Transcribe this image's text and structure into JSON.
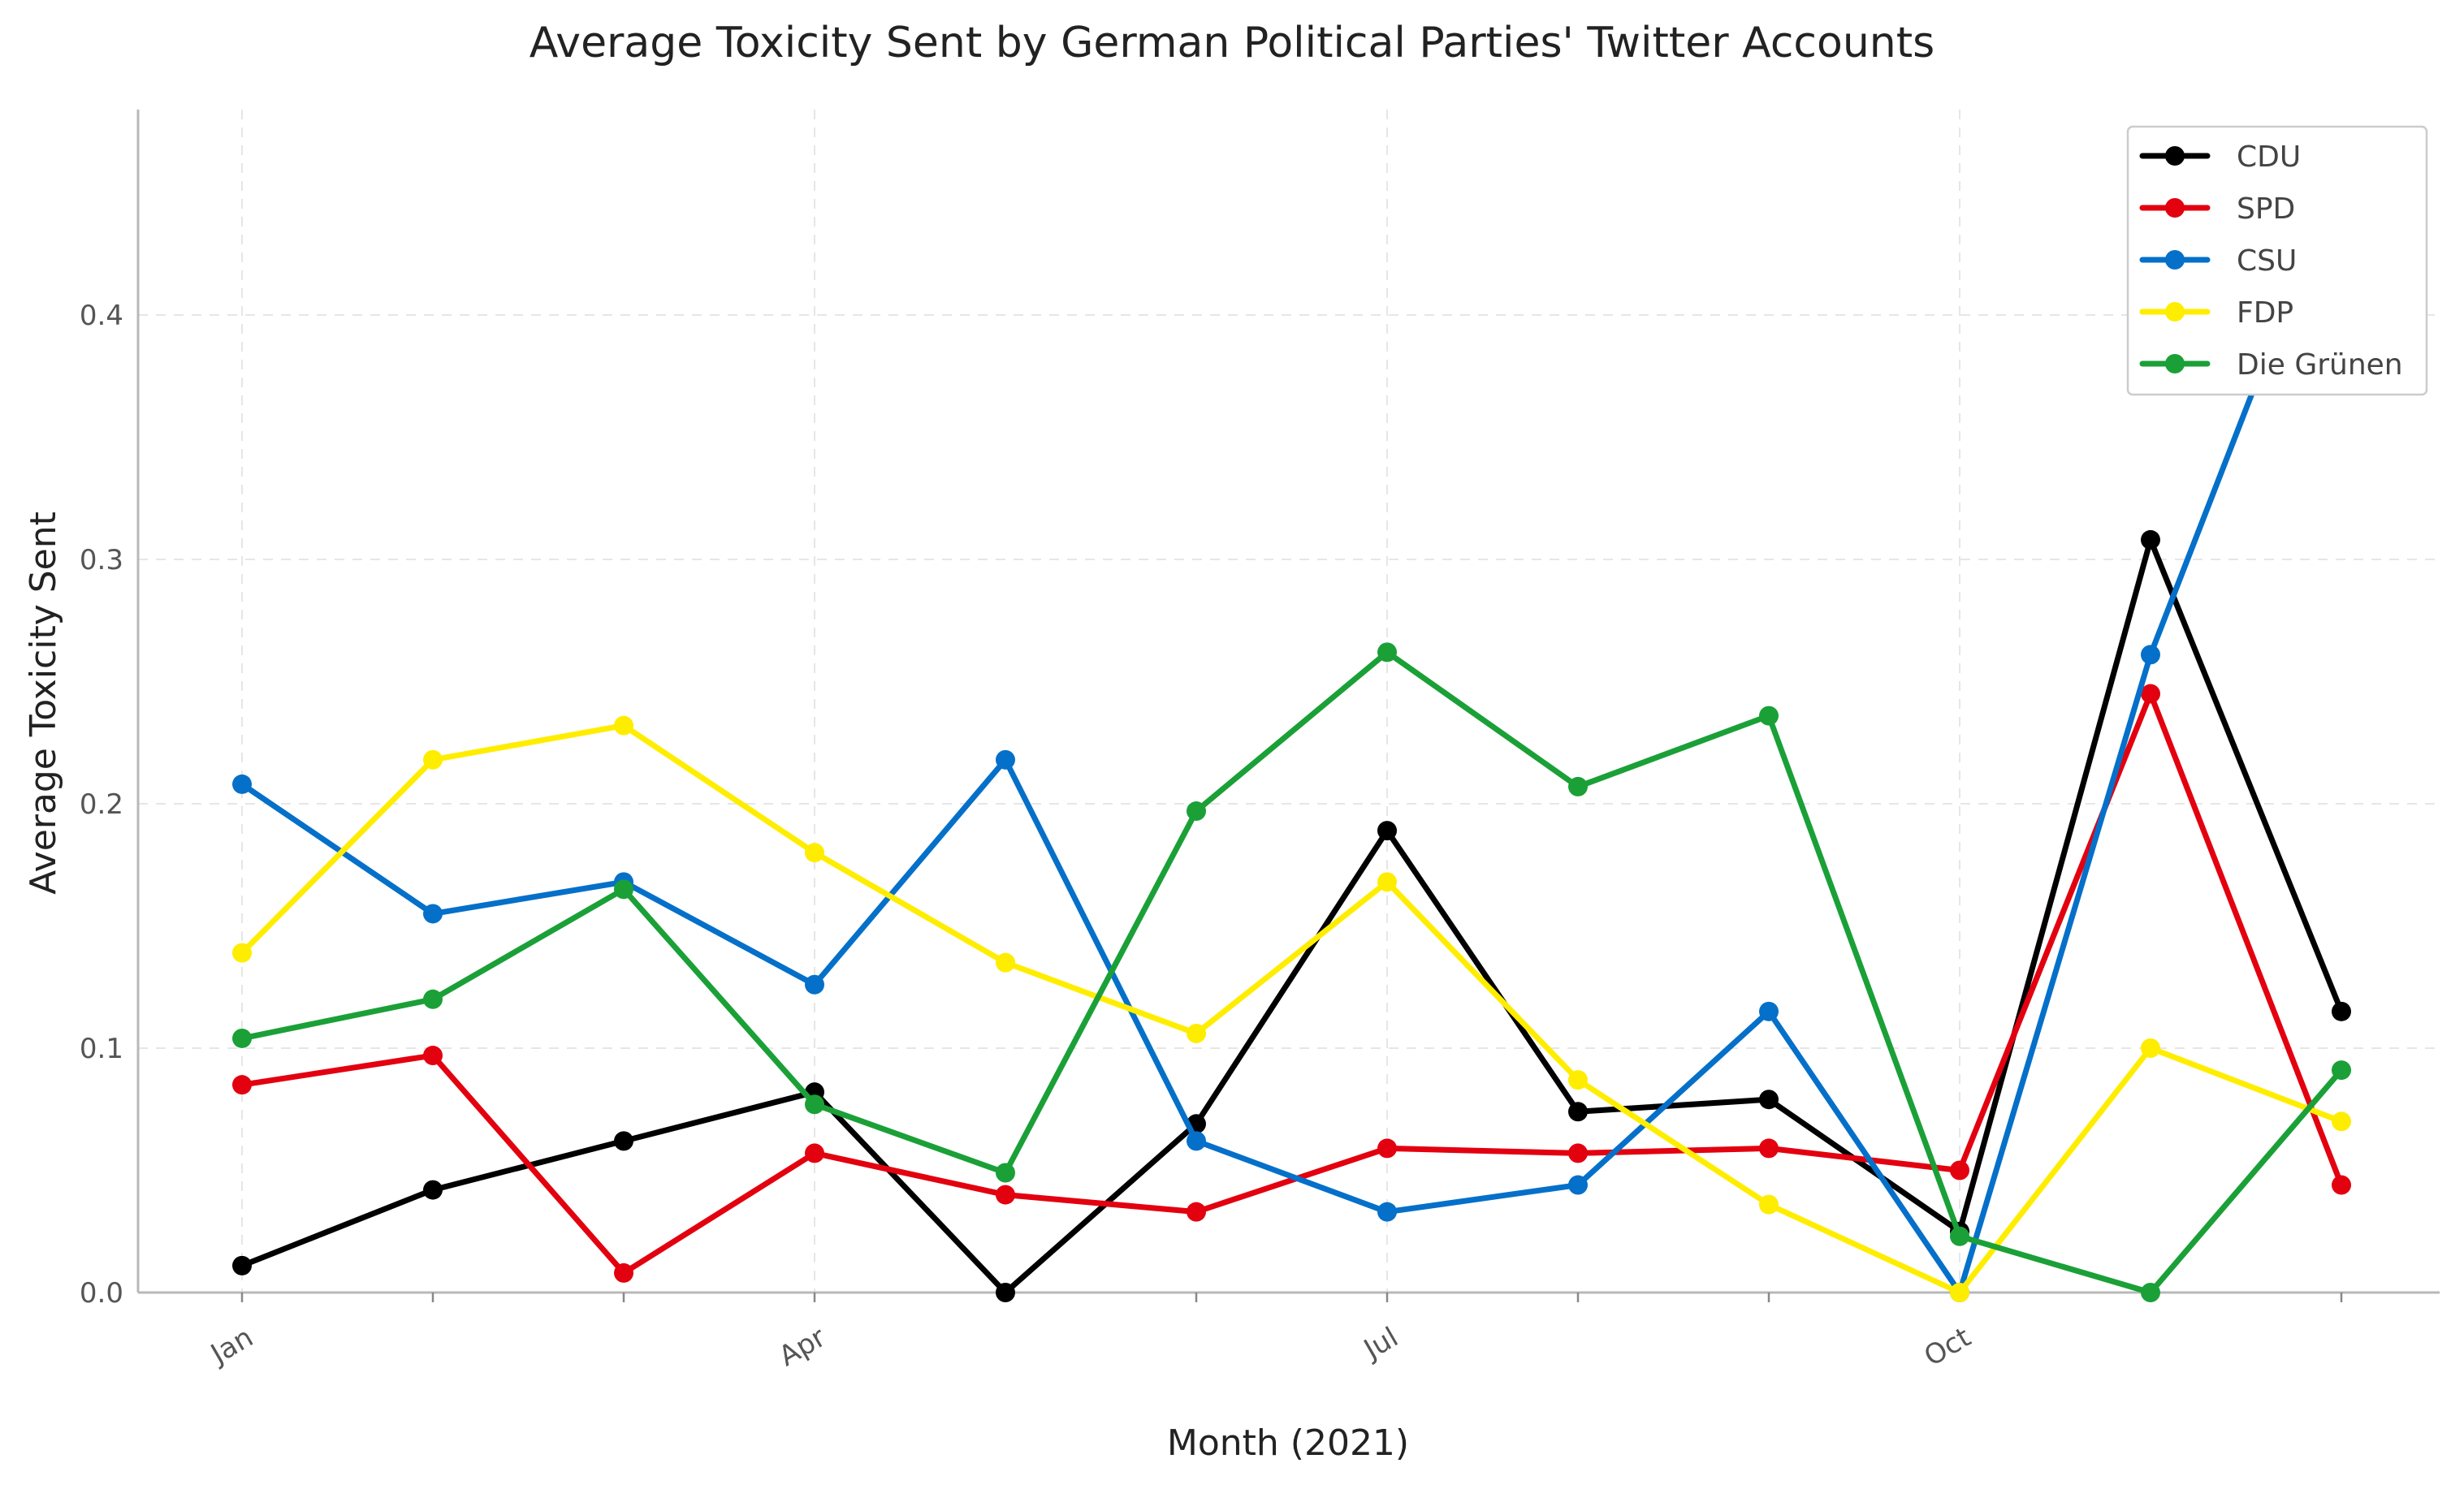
{
  "chart_data": {
    "type": "line",
    "title": "Average Toxicity Sent by German Political Parties' Twitter Accounts",
    "xlabel": "Month (2021)",
    "ylabel": "Average Toxicity Sent",
    "x": [
      "2021-01",
      "2021-02",
      "2021-03",
      "2021-04",
      "2021-05",
      "2021-06",
      "2021-07",
      "2021-08",
      "2021-09",
      "2021-10",
      "2021-11",
      "2021-12"
    ],
    "x_tick_labels": [
      {
        "month": "2021-01",
        "label": "Jan"
      },
      {
        "month": "2021-04",
        "label": "Apr"
      },
      {
        "month": "2021-07",
        "label": "Jul"
      },
      {
        "month": "2021-10",
        "label": "Oct"
      }
    ],
    "y_ticks": [
      "0.0",
      "0.1",
      "0.2",
      "0.3",
      "0.4"
    ],
    "ylim": [
      0,
      0.465
    ],
    "grid": true,
    "legend_position": "top-right",
    "series": [
      {
        "name": "CDU",
        "color": "#000000",
        "values": [
          0.011,
          0.042,
          0.062,
          0.082,
          0.0,
          0.069,
          0.189,
          0.074,
          0.079,
          0.025,
          0.308,
          0.115
        ]
      },
      {
        "name": "SPD",
        "color": "#e3000f",
        "values": [
          0.085,
          0.097,
          0.008,
          0.057,
          0.04,
          0.033,
          0.059,
          0.057,
          0.059,
          0.05,
          0.245,
          0.044
        ]
      },
      {
        "name": "CSU",
        "color": "#0570c9",
        "values": [
          0.208,
          0.155,
          0.168,
          0.126,
          0.218,
          0.062,
          0.033,
          0.044,
          0.115,
          0.0,
          0.261,
          0.462
        ]
      },
      {
        "name": "FDP",
        "color": "#ffed00",
        "values": [
          0.139,
          0.218,
          0.232,
          0.18,
          0.135,
          0.106,
          0.168,
          0.087,
          0.036,
          0.0,
          0.1,
          0.07
        ]
      },
      {
        "name": "Die Grünen",
        "color": "#1aa037",
        "values": [
          0.104,
          0.12,
          0.165,
          0.077,
          0.049,
          0.197,
          0.262,
          0.207,
          0.236,
          0.023,
          0.0,
          0.091
        ]
      }
    ]
  }
}
